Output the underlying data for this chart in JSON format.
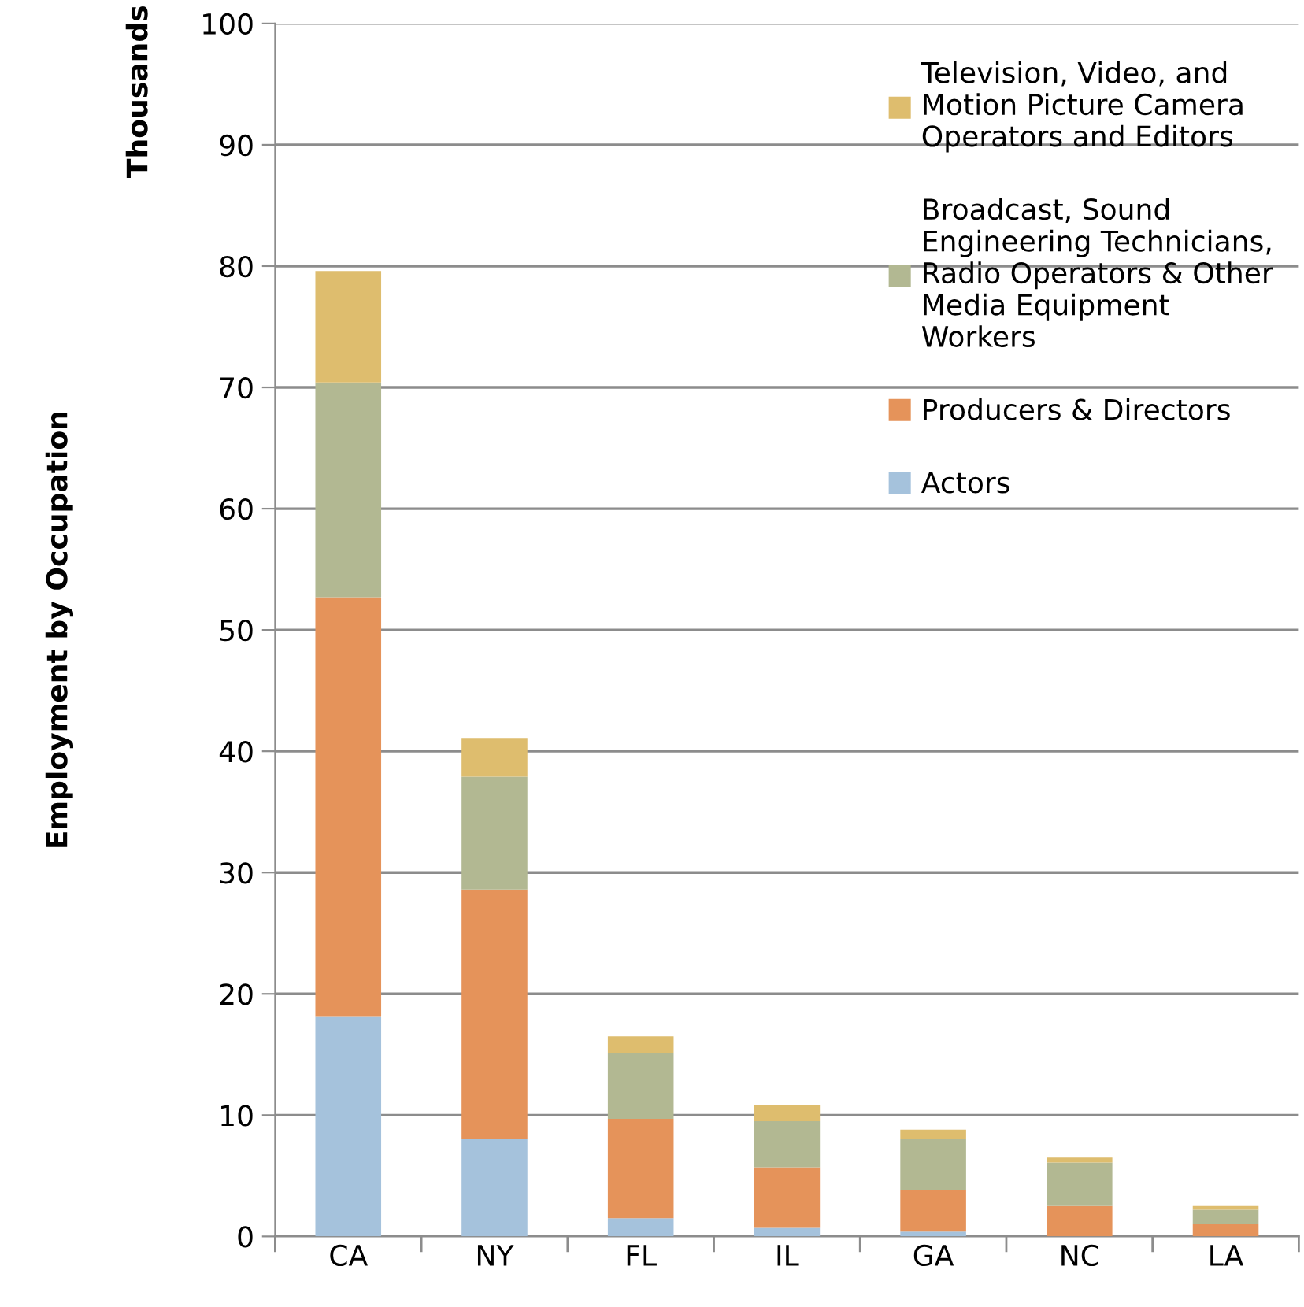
{
  "chart_data": {
    "type": "bar",
    "stacked": true,
    "ylabel": "Employment by Occupation",
    "annotations": [
      "Thousands"
    ],
    "categories": [
      "CA",
      "NY",
      "FL",
      "IL",
      "GA",
      "NC",
      "LA"
    ],
    "series": [
      {
        "name": "Actors",
        "color": "#a5c2dc",
        "values": [
          18.1,
          8.0,
          1.5,
          0.7,
          0.4,
          null,
          null
        ]
      },
      {
        "name": "Producers & Directors",
        "color": "#e5935a",
        "values": [
          34.6,
          20.6,
          8.2,
          5.0,
          3.4,
          2.5,
          1.0
        ]
      },
      {
        "name": "Broadcast, Sound\nEngineering Technicians,\nRadio Operators & Other\nMedia Equipment\nWorkers",
        "color": "#b2b892",
        "values": [
          17.7,
          9.3,
          5.4,
          3.8,
          4.2,
          3.6,
          1.2
        ]
      },
      {
        "name": "Television, Video, and\nMotion Picture Camera\nOperators and Editors",
        "color": "#debd6e",
        "values": [
          9.2,
          3.2,
          1.4,
          1.3,
          0.8,
          0.4,
          0.3
        ]
      }
    ],
    "ylim": [
      0,
      100
    ],
    "yticks": [
      0,
      10,
      20,
      30,
      40,
      50,
      60,
      70,
      80,
      90,
      100
    ],
    "grid": "y",
    "legend": "right"
  }
}
